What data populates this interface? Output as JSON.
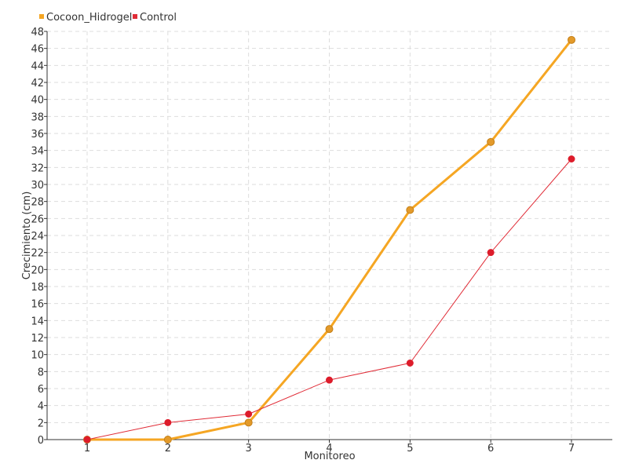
{
  "chart_data": {
    "type": "line",
    "categories": [
      1,
      2,
      3,
      4,
      5,
      6,
      7
    ],
    "series": [
      {
        "name": "Cocoon_Hidrogel",
        "color": "#f5a623",
        "marker_fill": "#e39a2a",
        "values": [
          0,
          0,
          2,
          13,
          27,
          35,
          47
        ]
      },
      {
        "name": "Control",
        "color": "#e02b36",
        "marker_fill": "#dd1c2b",
        "values": [
          0,
          2,
          3,
          7,
          9,
          22,
          33
        ]
      }
    ],
    "xlabel": "Monitoreo",
    "ylabel": "Crecimiento (cm)",
    "ylim": [
      0,
      48
    ],
    "ytick_step": 2,
    "grid": true,
    "legend_position": "top-left"
  }
}
